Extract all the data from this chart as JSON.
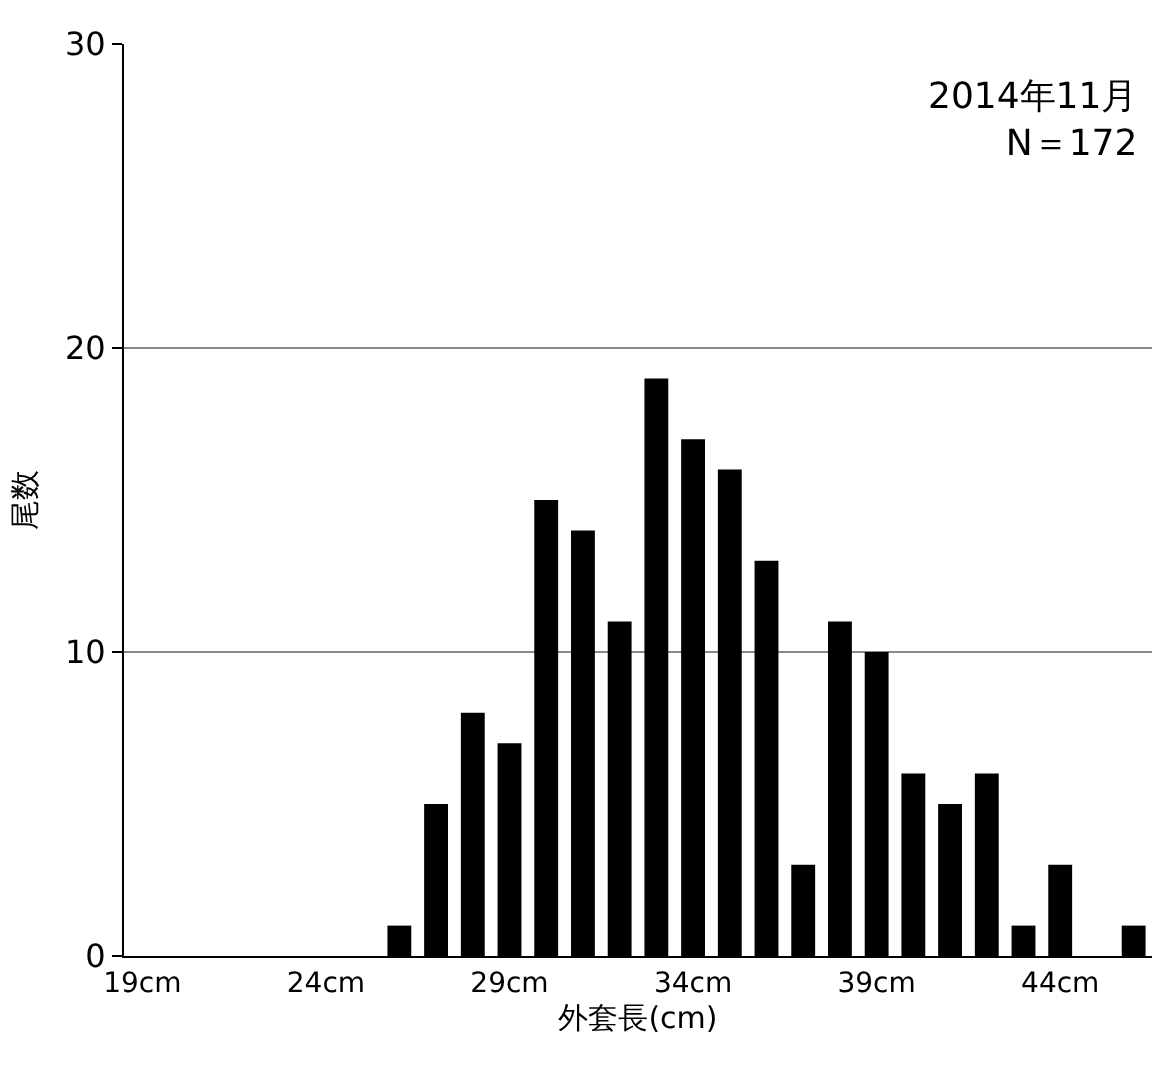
{
  "chart_data": {
    "type": "bar",
    "annotations": [
      "2014年11月\nN＝172"
    ],
    "xlabel": "外套長(cm)",
    "ylabel": "尾数",
    "categories": [
      "19cm",
      null,
      null,
      null,
      null,
      "24cm",
      null,
      null,
      null,
      null,
      "29cm",
      null,
      null,
      null,
      null,
      "34cm",
      null,
      null,
      null,
      null,
      "39cm",
      null,
      null,
      null,
      null,
      "44cm",
      null,
      null
    ],
    "values": [
      0,
      0,
      0,
      0,
      0,
      0,
      0,
      1,
      5,
      8,
      7,
      15,
      14,
      11,
      19,
      17,
      16,
      13,
      3,
      11,
      10,
      6,
      5,
      6,
      1,
      3,
      0,
      1
    ],
    "color": "#000000",
    "ylim": [
      0,
      30
    ],
    "yticks": [
      0,
      10,
      20,
      30
    ],
    "grid": "y",
    "legend": false
  }
}
